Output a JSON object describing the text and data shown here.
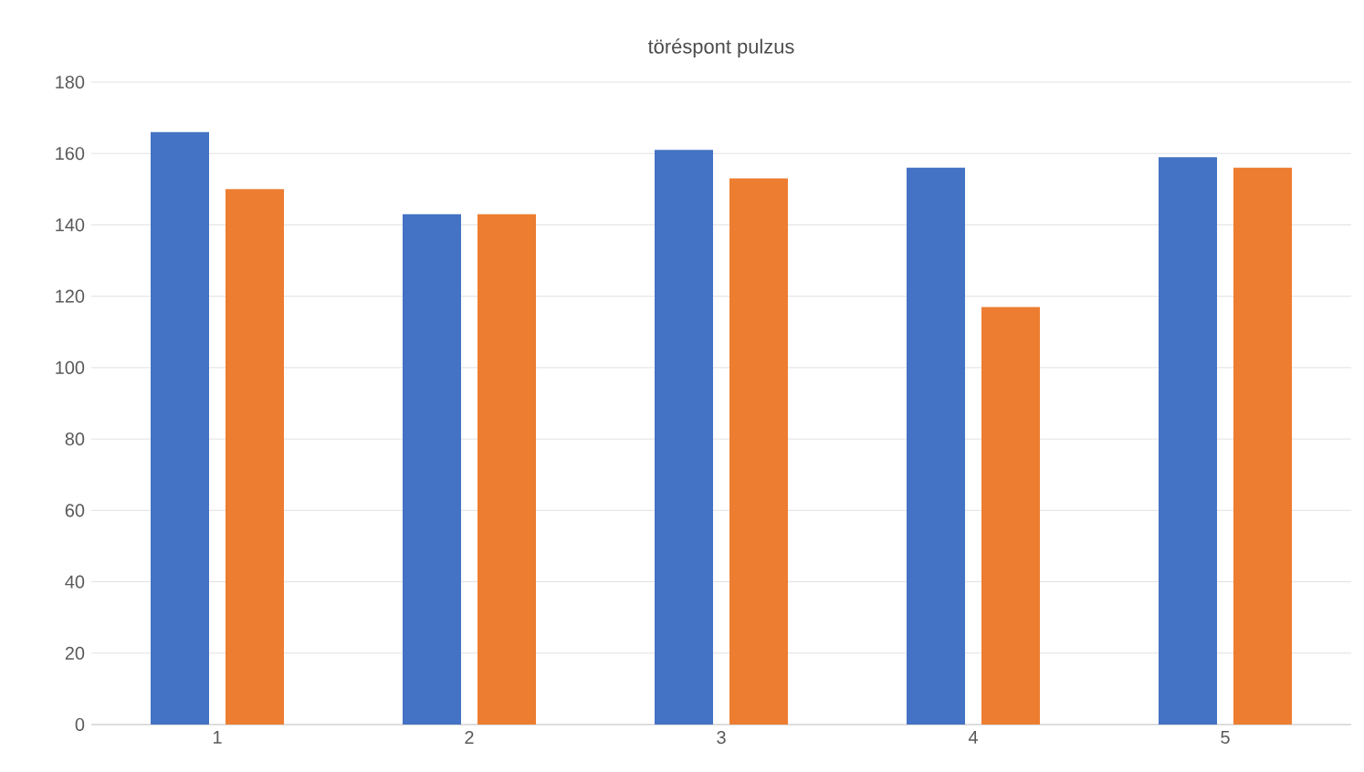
{
  "chart_data": {
    "type": "bar",
    "title": "töréspont pulzus",
    "categories": [
      "1",
      "2",
      "3",
      "4",
      "5"
    ],
    "series": [
      {
        "color": "#4472c4",
        "values": [
          166,
          143,
          161,
          156,
          159
        ]
      },
      {
        "color": "#ed7d31",
        "values": [
          150,
          143,
          153,
          117,
          156
        ]
      }
    ],
    "ylim": [
      0,
      180
    ],
    "yticks": [
      0,
      20,
      40,
      60,
      80,
      100,
      120,
      140,
      160,
      180
    ],
    "grid": "y"
  }
}
